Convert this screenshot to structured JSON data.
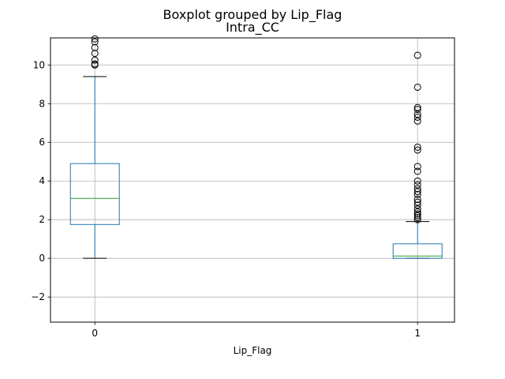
{
  "chart_data": {
    "type": "boxplot",
    "suptitle": "Boxplot grouped by Lip_Flag",
    "title": "Intra_CC",
    "xlabel": "Lip_Flag",
    "ylabel": "",
    "ylim": [
      -3.3,
      11.4
    ],
    "yticks": [
      -2,
      0,
      2,
      4,
      6,
      8,
      10
    ],
    "ytick_labels": [
      "−2",
      "0",
      "2",
      "4",
      "6",
      "8",
      "10"
    ],
    "grid": true,
    "categories": [
      "0",
      "1"
    ],
    "boxes": [
      {
        "category": "0",
        "whisker_low": 0.0,
        "q1": 1.75,
        "median": 3.1,
        "q3": 4.9,
        "whisker_high": 9.4,
        "outliers": [
          10.0,
          10.05,
          10.25,
          10.6,
          10.9,
          11.2,
          11.35
        ]
      },
      {
        "category": "1",
        "whisker_low": 0.0,
        "q1": 0.0,
        "median": 0.12,
        "q3": 0.75,
        "whisker_high": 1.9,
        "outliers": [
          2.0,
          2.1,
          2.2,
          2.3,
          2.4,
          2.55,
          2.75,
          2.9,
          3.05,
          3.3,
          3.45,
          3.6,
          3.8,
          4.0,
          4.5,
          4.75,
          5.6,
          5.75,
          7.1,
          7.3,
          7.45,
          7.7,
          7.8,
          8.85,
          10.5
        ]
      }
    ],
    "colors": {
      "box": "#1f77b4",
      "median": "#2ca02c",
      "whisker_cap": "#000000",
      "grid": "#b0b0b0"
    }
  }
}
